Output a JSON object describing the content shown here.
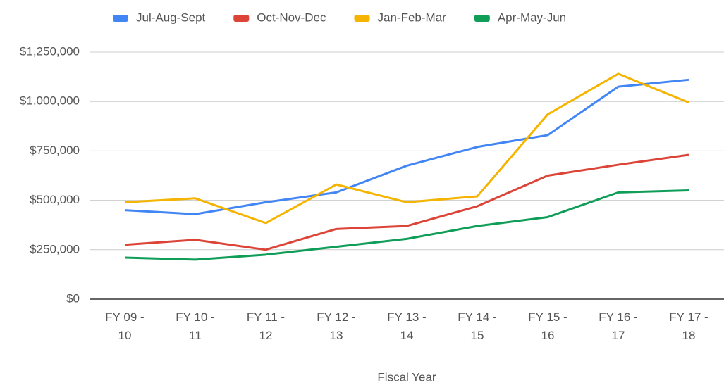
{
  "chart_data": {
    "type": "line",
    "x_label": "Fiscal Year",
    "categories": [
      "FY 09 - 10",
      "FY 10 - 11",
      "FY 11 - 12",
      "FY 12 - 13",
      "FY 13 - 14",
      "FY 14 - 15",
      "FY 15 - 16",
      "FY 16 - 17",
      "FY 17 - 18"
    ],
    "series": [
      {
        "name": "Jul-Aug-Sept",
        "color": "#4285f4",
        "values": [
          450000,
          430000,
          490000,
          540000,
          675000,
          770000,
          830000,
          1075000,
          1110000
        ]
      },
      {
        "name": "Oct-Nov-Dec",
        "color": "#db4437",
        "values": [
          275000,
          300000,
          250000,
          355000,
          370000,
          470000,
          625000,
          680000,
          730000
        ]
      },
      {
        "name": "Jan-Feb-Mar",
        "color": "#f4b400",
        "values": [
          490000,
          510000,
          385000,
          580000,
          490000,
          520000,
          935000,
          1140000,
          995000
        ]
      },
      {
        "name": "Apr-May-Jun",
        "color": "#0f9d58",
        "values": [
          210000,
          200000,
          225000,
          265000,
          305000,
          370000,
          415000,
          540000,
          550000
        ]
      }
    ],
    "ylim": [
      0,
      1250000
    ],
    "yticks": [
      {
        "value": 0,
        "label": "$0"
      },
      {
        "value": 250000,
        "label": "$250,000"
      },
      {
        "value": 500000,
        "label": "$500,000"
      },
      {
        "value": 750000,
        "label": "$750,000"
      },
      {
        "value": 1000000,
        "label": "$1,000,000"
      },
      {
        "value": 1250000,
        "label": "$1,250,000"
      }
    ],
    "grid": true,
    "legend": "top"
  }
}
